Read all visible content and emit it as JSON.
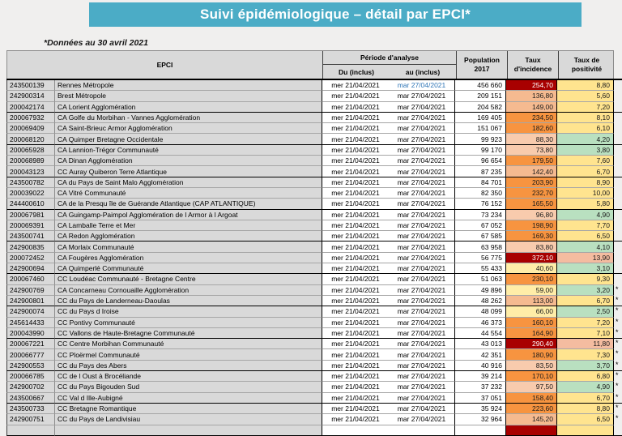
{
  "banner": {
    "title": "Suivi épidémiologique – détail par EPCI*",
    "bg_color": "#4BACC6"
  },
  "subtitle": "*Données au 30 avril 2021",
  "table": {
    "headers": {
      "epci": "EPCI",
      "periode": "Période d'analyse",
      "du": "Du (inclus)",
      "au": "au (inclus)",
      "population_l1": "Population",
      "population_l2": "2017",
      "incidence_l1": "Taux",
      "incidence_l2": "d'incidence",
      "positivite_l1": "Taux de",
      "positivite_l2": "positivité"
    },
    "date_du": "mer 21/04/2021",
    "date_au": "mar 27/04/2021",
    "link_blue": "#2E75B6",
    "header_bg": "#D9D9D9",
    "palette": {
      "darkred": "#A80000",
      "orange": "#F79440",
      "salmonmid": "#F5BA90",
      "salmon": "#F8CBAD",
      "cream": "#FFEDA8",
      "yellow": "#FFE48F",
      "green": "#B9E0C0",
      "possalmon": "#F4BCA0"
    },
    "rows": [
      {
        "id": "243500139",
        "name": "Rennes Métropole",
        "pop": "456 660",
        "inc": "254,70",
        "incc": "darkred",
        "pos": "8,80",
        "posc": "yellow",
        "star": false,
        "au_blue": true
      },
      {
        "id": "242900314",
        "name": "Brest Métropole",
        "pop": "209 151",
        "inc": "136,80",
        "incc": "salmonmid",
        "pos": "5,60",
        "posc": "yellow",
        "star": false
      },
      {
        "id": "200042174",
        "name": "CA Lorient Agglomération",
        "pop": "204 582",
        "inc": "149,00",
        "incc": "salmonmid",
        "pos": "7,20",
        "posc": "yellow",
        "star": false
      },
      {
        "id": "200067932",
        "name": "CA Golfe du Morbihan - Vannes Agglomération",
        "pop": "169 405",
        "inc": "234,50",
        "incc": "orange",
        "pos": "8,10",
        "posc": "yellow",
        "star": false
      },
      {
        "id": "200069409",
        "name": "CA Saint-Brieuc Armor Agglomération",
        "pop": "151 067",
        "inc": "182,60",
        "incc": "orange",
        "pos": "6,10",
        "posc": "yellow",
        "star": false
      },
      {
        "id": "200068120",
        "name": "CA Quimper Bretagne Occidentale",
        "pop": "99 923",
        "inc": "88,30",
        "incc": "salmon",
        "pos": "4,20",
        "posc": "green",
        "star": false
      },
      {
        "id": "200065928",
        "name": "CA Lannion-Trégor Communauté",
        "pop": "99 170",
        "inc": "73,80",
        "incc": "salmon",
        "pos": "3,80",
        "posc": "green",
        "star": false
      },
      {
        "id": "200068989",
        "name": "CA Dinan Agglomération",
        "pop": "96 654",
        "inc": "179,50",
        "incc": "orange",
        "pos": "7,60",
        "posc": "yellow",
        "star": false
      },
      {
        "id": "200043123",
        "name": "CC Auray Quiberon Terre Atlantique",
        "pop": "87 235",
        "inc": "142,40",
        "incc": "salmonmid",
        "pos": "6,70",
        "posc": "yellow",
        "star": false
      },
      {
        "id": "243500782",
        "name": "CA du Pays de Saint Malo Agglomération",
        "pop": "84 701",
        "inc": "203,90",
        "incc": "orange",
        "pos": "8,90",
        "posc": "yellow",
        "star": false
      },
      {
        "id": "200039022",
        "name": "CA Vitré Communauté",
        "pop": "82 350",
        "inc": "232,70",
        "incc": "orange",
        "pos": "10,00",
        "posc": "yellow",
        "star": false
      },
      {
        "id": "244400610",
        "name": "CA de la Presqu île de Guérande Atlantique (CAP ATLANTIQUE)",
        "pop": "76 152",
        "inc": "165,50",
        "incc": "orange",
        "pos": "5,80",
        "posc": "yellow",
        "star": false
      },
      {
        "id": "200067981",
        "name": "CA Guingamp-Paimpol Agglomération de l Armor à  l Argoat",
        "pop": "73 234",
        "inc": "96,80",
        "incc": "salmon",
        "pos": "4,90",
        "posc": "green",
        "star": false
      },
      {
        "id": "200069391",
        "name": "CA Lamballe Terre et Mer",
        "pop": "67 052",
        "inc": "198,90",
        "incc": "orange",
        "pos": "7,70",
        "posc": "yellow",
        "star": false
      },
      {
        "id": "243500741",
        "name": "CA Redon Agglomération",
        "pop": "67 585",
        "inc": "169,30",
        "incc": "orange",
        "pos": "6,50",
        "posc": "yellow",
        "star": false
      },
      {
        "id": "242900835",
        "name": "CA Morlaix Communauté",
        "pop": "63 958",
        "inc": "83,80",
        "incc": "salmon",
        "pos": "4,10",
        "posc": "green",
        "star": false
      },
      {
        "id": "200072452",
        "name": "CA Fougères Agglomération",
        "pop": "56 775",
        "inc": "372,10",
        "incc": "darkred",
        "pos": "13,90",
        "posc": "possalmon",
        "star": false
      },
      {
        "id": "242900694",
        "name": "CA Quimperlé Communauté",
        "pop": "55 433",
        "inc": "40,60",
        "incc": "cream",
        "pos": "3,10",
        "posc": "green",
        "star": false
      },
      {
        "id": "200067460",
        "name": "CC Loudéac Communauté - Bretagne Centre",
        "pop": "51 063",
        "inc": "230,10",
        "incc": "orange",
        "pos": "9,30",
        "posc": "yellow",
        "star": false
      },
      {
        "id": "242900769",
        "name": "CA Concarneau Cornouaille Agglomération",
        "pop": "49 896",
        "inc": "59,00",
        "incc": "cream",
        "pos": "3,20",
        "posc": "green",
        "star": true
      },
      {
        "id": "242900801",
        "name": "CC du Pays de Landerneau-Daoulas",
        "pop": "48 262",
        "inc": "113,00",
        "incc": "salmonmid",
        "pos": "6,70",
        "posc": "yellow",
        "star": true
      },
      {
        "id": "242900074",
        "name": "CC du Pays d Iroise",
        "pop": "48 099",
        "inc": "66,00",
        "incc": "cream",
        "pos": "2,50",
        "posc": "green",
        "star": true
      },
      {
        "id": "245614433",
        "name": "CC Pontivy Communauté",
        "pop": "46 373",
        "inc": "160,10",
        "incc": "orange",
        "pos": "7,20",
        "posc": "yellow",
        "star": true
      },
      {
        "id": "200043990",
        "name": "CC Vallons de Haute-Bretagne Communauté",
        "pop": "44 554",
        "inc": "164,90",
        "incc": "orange",
        "pos": "7,10",
        "posc": "yellow",
        "star": true
      },
      {
        "id": "200067221",
        "name": "CC Centre Morbihan Communauté",
        "pop": "43 013",
        "inc": "290,40",
        "incc": "darkred",
        "pos": "11,80",
        "posc": "possalmon",
        "star": true
      },
      {
        "id": "200066777",
        "name": "CC Ploërmel Communauté",
        "pop": "42 351",
        "inc": "180,90",
        "incc": "orange",
        "pos": "7,30",
        "posc": "yellow",
        "star": true
      },
      {
        "id": "242900553",
        "name": "CC du Pays des Abers",
        "pop": "40 916",
        "inc": "83,50",
        "incc": "salmon",
        "pos": "3,70",
        "posc": "green",
        "star": true
      },
      {
        "id": "200066785",
        "name": "CC de l Oust à  Brocéliande",
        "pop": "39 214",
        "inc": "170,10",
        "incc": "orange",
        "pos": "6,80",
        "posc": "yellow",
        "star": true
      },
      {
        "id": "242900702",
        "name": "CC du Pays Bigouden Sud",
        "pop": "37 232",
        "inc": "97,50",
        "incc": "salmon",
        "pos": "4,90",
        "posc": "green",
        "star": true
      },
      {
        "id": "243500667",
        "name": "CC Val d Ille-Aubigné",
        "pop": "37 051",
        "inc": "158,40",
        "incc": "orange",
        "pos": "6,70",
        "posc": "yellow",
        "star": true
      },
      {
        "id": "243500733",
        "name": "CC Bretagne Romantique",
        "pop": "35 924",
        "inc": "223,60",
        "incc": "orange",
        "pos": "8,80",
        "posc": "yellow",
        "star": true
      },
      {
        "id": "242900751",
        "name": "CC du Pays de Landivisiau",
        "pop": "32 964",
        "inc": "145,20",
        "incc": "salmonmid",
        "pos": "6,50",
        "posc": "yellow",
        "star": true
      },
      {
        "id": "",
        "name": "",
        "pop": "",
        "inc": "",
        "incc": "darkred",
        "pos": "",
        "posc": "yellow",
        "star": false,
        "partial": true
      }
    ]
  }
}
